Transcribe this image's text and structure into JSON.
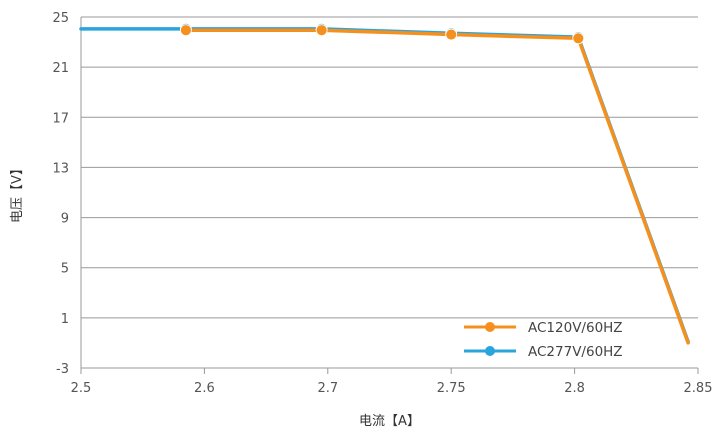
{
  "chart_data": {
    "type": "line",
    "xlabel": "电流【A】",
    "ylabel": "电压【V】",
    "x_ticks": [
      "2.5",
      "2.6",
      "2.7",
      "2.75",
      "2.8",
      "2.85"
    ],
    "y_ticks": [
      -3,
      1,
      5,
      9,
      13,
      17,
      21,
      25
    ],
    "ylim": [
      -3,
      25
    ],
    "grid": "horizontal",
    "legend_position": "bottom-right",
    "series": [
      {
        "name": "AC120V/60HZ",
        "color": "#f5901e",
        "points": [
          {
            "x_pos": 0.85,
            "y": 23.95
          },
          {
            "x_pos": 1.95,
            "y": 23.95
          },
          {
            "x_pos": 3.0,
            "y": 23.6
          },
          {
            "x_pos": 4.03,
            "y": 23.3
          },
          {
            "x_pos": 4.92,
            "y": -1.0
          }
        ]
      },
      {
        "name": "AC277V/60HZ",
        "color": "#2aa4dc",
        "points": [
          {
            "x_pos": 0.0,
            "y": 24.05
          },
          {
            "x_pos": 0.85,
            "y": 24.05
          },
          {
            "x_pos": 1.95,
            "y": 24.05
          },
          {
            "x_pos": 3.0,
            "y": 23.7
          },
          {
            "x_pos": 4.03,
            "y": 23.4
          },
          {
            "x_pos": 4.92,
            "y": -0.9
          }
        ]
      }
    ]
  }
}
